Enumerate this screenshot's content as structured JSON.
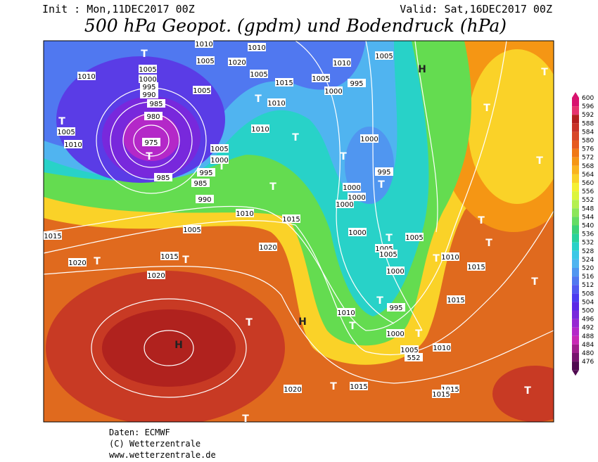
{
  "header": {
    "init": "Init : Mon,11DEC2017 00Z",
    "valid": "Valid: Sat,16DEC2017 00Z",
    "title": "500 hPa Geopot. (gpdm) und Bodendruck (hPa)"
  },
  "map": {
    "labels": [
      "1010",
      "1005",
      "1000",
      "995",
      "990",
      "985",
      "980",
      "975",
      "985",
      "1005",
      "1010",
      "1005",
      "1005",
      "1010",
      "1010",
      "1020",
      "1005",
      "1015",
      "1010",
      "1010",
      "1005",
      "1000",
      "995",
      "985",
      "990",
      "1010",
      "1005",
      "1015",
      "1020",
      "1015",
      "1020",
      "1015",
      "1020",
      "1005",
      "1010",
      "1005",
      "1000",
      "995",
      "1000",
      "995",
      "1000",
      "1000",
      "1000",
      "1000",
      "1005",
      "1005",
      "1005",
      "1000",
      "995",
      "1010",
      "1015",
      "1015",
      "1010",
      "1000",
      "1005",
      "552",
      "1010",
      "1020",
      "1015",
      "1015",
      "1015",
      "H",
      "H",
      "H",
      "T",
      "T",
      "T",
      "T",
      "T",
      "T",
      "T",
      "T",
      "T",
      "T",
      "T",
      "T",
      "T",
      "T",
      "T",
      "T",
      "T",
      "T",
      "T",
      "T",
      "T",
      "T",
      "T",
      "T",
      "T",
      "T"
    ]
  },
  "colorbar": {
    "labels": [
      600,
      596,
      592,
      588,
      584,
      580,
      576,
      572,
      568,
      564,
      560,
      556,
      552,
      548,
      544,
      540,
      536,
      532,
      528,
      524,
      520,
      516,
      512,
      508,
      504,
      500,
      496,
      492,
      488,
      484,
      480,
      476
    ],
    "colors": [
      "#d8126e",
      "#e6326e",
      "#b41e1e",
      "#c83228",
      "#d74628",
      "#e65a1e",
      "#f07814",
      "#f59614",
      "#fab41e",
      "#fad228",
      "#f5f032",
      "#dcf53c",
      "#b4f050",
      "#8ce65a",
      "#64dc64",
      "#3cd278",
      "#28d29b",
      "#28d2c8",
      "#3cc8e6",
      "#50b4f0",
      "#5096f0",
      "#5078f0",
      "#505af0",
      "#4b3cf0",
      "#5a28e6",
      "#7828dc",
      "#9628d2",
      "#b428c8",
      "#c828b4",
      "#a01e8c",
      "#78146e",
      "#500a50"
    ]
  },
  "footer": {
    "source": "Daten: ECMWF",
    "copyright": "(C) Wetterzentrale",
    "url": "www.wetterzentrale.de"
  }
}
